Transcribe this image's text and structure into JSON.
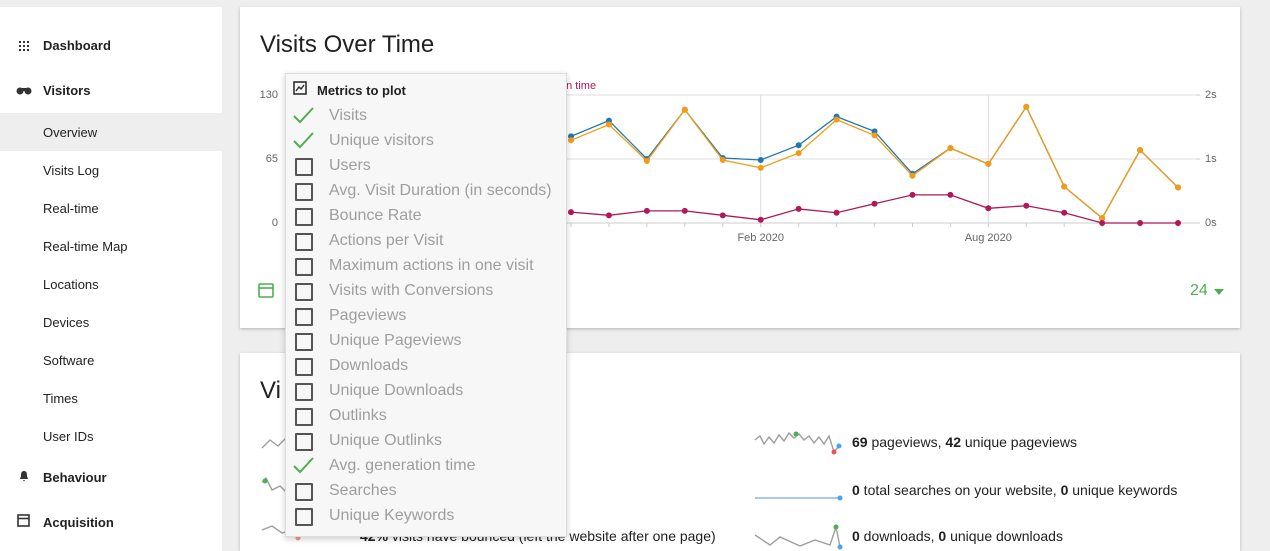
{
  "sidebar": {
    "dashboard": "Dashboard",
    "visitors": {
      "label": "Visitors",
      "items": [
        "Overview",
        "Visits Log",
        "Real-time",
        "Real-time Map",
        "Locations",
        "Devices",
        "Software",
        "Times",
        "User IDs"
      ]
    },
    "behaviour": "Behaviour",
    "acquisition": "Acquisition"
  },
  "chart_data": {
    "type": "line",
    "title": "Visits Over Time",
    "legend_fragment": "on time",
    "categories": [
      null,
      null,
      null,
      null,
      null,
      "Feb 2020",
      null,
      null,
      null,
      null,
      null,
      "Aug 2020",
      null,
      null,
      null,
      null,
      null
    ],
    "series": [
      {
        "name": "Visits",
        "color": "#1f78b4",
        "values": [
          88,
          104,
          65,
          115,
          66,
          64,
          79,
          108,
          93,
          50,
          76,
          60,
          118,
          37,
          5,
          74,
          36
        ]
      },
      {
        "name": "Unique visitors",
        "color": "#f39c12",
        "values": [
          84,
          100,
          63,
          115,
          64,
          56,
          71,
          105,
          89,
          48,
          76,
          60,
          118,
          37,
          5,
          74,
          36
        ]
      },
      {
        "name": "Avg. generation time",
        "color": "#b0185a",
        "axis": "y2",
        "values": [
          0.17,
          0.12,
          0.19,
          0.19,
          0.12,
          0.05,
          0.22,
          0.16,
          0.3,
          0.44,
          0.44,
          0.23,
          0.27,
          0.16,
          0,
          0,
          0
        ]
      }
    ],
    "ylim": [
      0,
      130
    ],
    "yticks": [
      0,
      65,
      130
    ],
    "y2lim": [
      0,
      2
    ],
    "y2ticks": [
      {
        "value": 0,
        "label": "0s"
      },
      {
        "value": 1,
        "label": "1s"
      },
      {
        "value": 2,
        "label": "2s"
      }
    ],
    "grid": true,
    "period_count": 24
  },
  "metrics_picker": {
    "title": "Metrics to plot",
    "items": [
      {
        "label": "Visits",
        "checked": true
      },
      {
        "label": "Unique visitors",
        "checked": true
      },
      {
        "label": "Users",
        "checked": false
      },
      {
        "label": "Avg. Visit Duration (in seconds)",
        "checked": false
      },
      {
        "label": "Bounce Rate",
        "checked": false
      },
      {
        "label": "Actions per Visit",
        "checked": false
      },
      {
        "label": "Maximum actions in one visit",
        "checked": false
      },
      {
        "label": "Visits with Conversions",
        "checked": false
      },
      {
        "label": "Pageviews",
        "checked": false
      },
      {
        "label": "Unique Pageviews",
        "checked": false
      },
      {
        "label": "Downloads",
        "checked": false
      },
      {
        "label": "Unique Downloads",
        "checked": false
      },
      {
        "label": "Outlinks",
        "checked": false
      },
      {
        "label": "Unique Outlinks",
        "checked": false
      },
      {
        "label": "Avg. generation time",
        "checked": true
      },
      {
        "label": "Searches",
        "checked": false
      },
      {
        "label": "Unique Keywords",
        "checked": false
      }
    ]
  },
  "overview": {
    "title": "Vi",
    "bounce": {
      "number": "42%",
      "text": " visits have bounced (left the website after one page)"
    },
    "pageviews": {
      "n1": 69,
      "t1": " pageviews, ",
      "n2": 42,
      "t2": " unique pageviews"
    },
    "searches": {
      "n1": 0,
      "t1": " total searches on your website, ",
      "n2": 0,
      "t2": " unique keywords"
    },
    "downloads": {
      "n1": 0,
      "t1": " downloads, ",
      "n2": 0,
      "t2": " unique downloads"
    }
  }
}
